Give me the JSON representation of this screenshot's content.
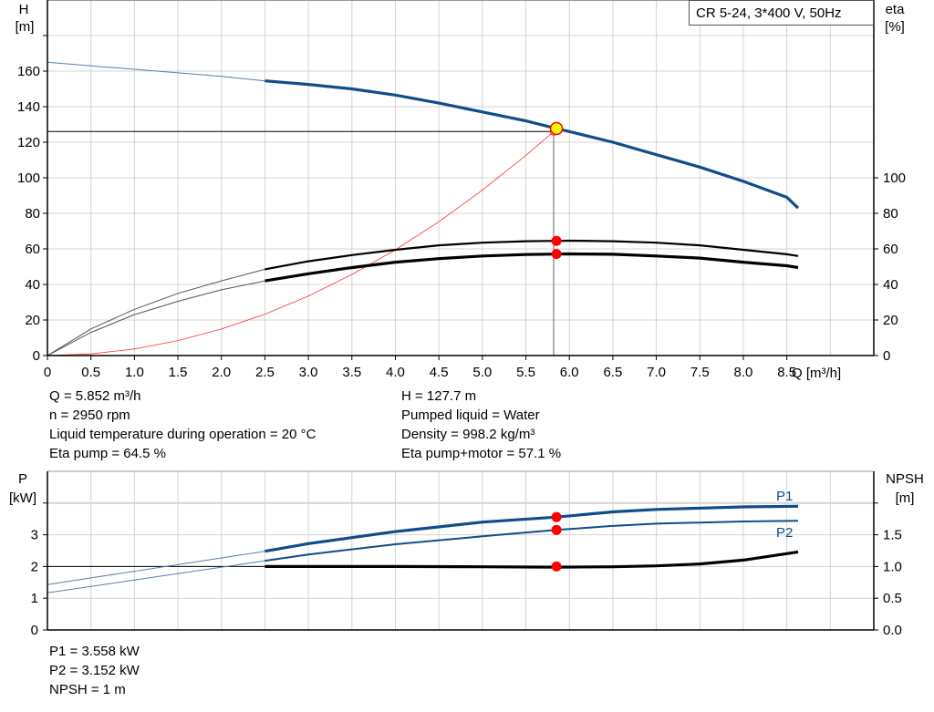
{
  "chart_data": [
    {
      "type": "line",
      "product_label": "CR 5-24, 3*400 V, 50Hz",
      "xlabel": "Q [m³/h]",
      "ylabel_left": [
        "H",
        "[m]"
      ],
      "ylabel_right": [
        "eta",
        "[%]"
      ],
      "xlim": [
        0,
        9.5
      ],
      "ylim": [
        0,
        200
      ],
      "x_ticks": [
        "0",
        "0.5",
        "1.0",
        "1.5",
        "2.0",
        "2.5",
        "3.0",
        "3.5",
        "4.0",
        "4.5",
        "5.0",
        "5.5",
        "6.0",
        "6.5",
        "7.0",
        "7.5",
        "8.0",
        "8.5"
      ],
      "y_ticks_left": [
        "0",
        "20",
        "40",
        "60",
        "80",
        "100",
        "120",
        "140",
        "160"
      ],
      "y_ticks_right": [
        "0",
        "20",
        "40",
        "60",
        "80",
        "100"
      ],
      "grid": true,
      "colors": {
        "head": "#0e4d8a",
        "eta": "#000000",
        "system": "#ff3030",
        "point": "#ff0000",
        "duty": "#ffff00"
      },
      "series": [
        {
          "key": "H",
          "x": [
            0,
            0.5,
            1,
            1.5,
            2,
            2.5,
            3,
            3.5,
            4,
            4.5,
            5,
            5.5,
            5.852,
            6,
            6.5,
            7,
            7.5,
            8,
            8.5,
            8.63
          ],
          "y": [
            165,
            163,
            161,
            159,
            157,
            154.5,
            152.5,
            150,
            146.5,
            142,
            137,
            132,
            127.7,
            126,
            120,
            113,
            106,
            98,
            89,
            83
          ]
        },
        {
          "key": "eta_pump",
          "x": [
            0,
            0.5,
            1,
            1.5,
            2,
            2.5,
            3,
            3.5,
            4,
            4.5,
            5,
            5.5,
            5.852,
            6,
            6.5,
            7,
            7.5,
            8,
            8.5,
            8.63
          ],
          "y": [
            0,
            15,
            26,
            35,
            42,
            48.5,
            53,
            56.5,
            59.5,
            62,
            63.5,
            64.3,
            64.5,
            64.6,
            64.3,
            63.5,
            62,
            59.5,
            57,
            56
          ]
        },
        {
          "key": "eta_pump_motor",
          "x": [
            0,
            0.5,
            1,
            1.5,
            2,
            2.5,
            3,
            3.5,
            4,
            4.5,
            5,
            5.5,
            5.852,
            6,
            6.5,
            7,
            7.5,
            8,
            8.5,
            8.63
          ],
          "y": [
            0,
            13,
            23,
            30.5,
            37,
            42,
            46,
            49.5,
            52.5,
            54.5,
            56,
            56.8,
            57.1,
            57.2,
            57,
            56,
            54.8,
            52.5,
            50.5,
            49.5
          ]
        },
        {
          "key": "system_curve",
          "x": [
            0,
            0.5,
            1,
            1.5,
            2,
            2.5,
            3,
            3.5,
            4,
            4.5,
            5,
            5.5,
            5.82
          ],
          "y": [
            0,
            0.9,
            3.7,
            8.4,
            14.9,
            23.3,
            33.5,
            45.6,
            59.5,
            75.3,
            93,
            112.5,
            126
          ]
        }
      ],
      "duty_point": {
        "Q": 5.852,
        "H": 127.7,
        "eta_pump": 64.5,
        "eta_pump_motor": 57.1
      },
      "info_left": [
        "Q = 5.852 m³/h",
        "n = 2950 rpm",
        "Liquid temperature during operation = 20 °C",
        "Eta pump = 64.5 %"
      ],
      "info_right": [
        "H = 127.7 m",
        "Pumped liquid = Water",
        "Density = 998.2 kg/m³",
        "Eta pump+motor = 57.1 %"
      ]
    },
    {
      "type": "line",
      "ylabel_left": [
        "P",
        "[kW]"
      ],
      "ylabel_right": [
        "NPSH",
        "[m]"
      ],
      "xlim": [
        0,
        9.5
      ],
      "ylim": [
        0,
        5
      ],
      "ylim_right": [
        0,
        2.5
      ],
      "y_ticks_left": [
        "0",
        "1",
        "2",
        "3"
      ],
      "y_ticks_right": [
        "0.0",
        "0.5",
        "1.0",
        "1.5"
      ],
      "grid": true,
      "series": [
        {
          "name": "P1",
          "x": [
            0,
            2.5,
            3,
            4,
            5,
            5.852,
            6.5,
            7,
            8,
            8.63
          ],
          "y": [
            1.43,
            2.48,
            2.72,
            3.1,
            3.4,
            3.558,
            3.72,
            3.8,
            3.88,
            3.9
          ]
        },
        {
          "name": "P2",
          "x": [
            0,
            2.5,
            3,
            4,
            5,
            5.852,
            6.5,
            7,
            8,
            8.63
          ],
          "y": [
            1.17,
            2.18,
            2.38,
            2.7,
            2.95,
            3.152,
            3.28,
            3.35,
            3.42,
            3.44
          ]
        },
        {
          "key": "NPSH",
          "x": [
            2.5,
            3,
            4,
            5,
            5.852,
            6.5,
            7,
            7.5,
            8,
            8.63
          ],
          "y": [
            1.0,
            1.0,
            1.0,
            0.995,
            0.99,
            0.995,
            1.01,
            1.04,
            1.1,
            1.23
          ]
        }
      ],
      "duty_point": {
        "P1": 3.558,
        "P2": 3.152,
        "NPSH": 1
      },
      "info": [
        "P1 = 3.558 kW",
        "P2 = 3.152 kW",
        "NPSH = 1 m"
      ]
    }
  ]
}
